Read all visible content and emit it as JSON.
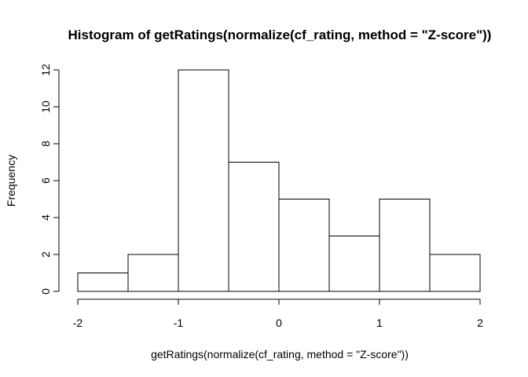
{
  "chart_data": {
    "type": "bar",
    "title": "Histogram of getRatings(normalize(cf_rating, method = \"Z-score\"))",
    "xlabel": "getRatings(normalize(cf_rating, method = \"Z-score\"))",
    "ylabel": "Frequency",
    "bins": [
      {
        "start": -2.0,
        "end": -1.5,
        "count": 1
      },
      {
        "start": -1.5,
        "end": -1.0,
        "count": 2
      },
      {
        "start": -1.0,
        "end": -0.5,
        "count": 12
      },
      {
        "start": -0.5,
        "end": 0.0,
        "count": 7
      },
      {
        "start": 0.0,
        "end": 0.5,
        "count": 5
      },
      {
        "start": 0.5,
        "end": 1.0,
        "count": 3
      },
      {
        "start": 1.0,
        "end": 1.5,
        "count": 5
      },
      {
        "start": 1.5,
        "end": 2.0,
        "count": 2
      }
    ],
    "xlim": [
      -2,
      2
    ],
    "ylim": [
      0,
      12
    ],
    "x_ticks": [
      -2,
      -1,
      0,
      1,
      2
    ],
    "x_tick_labels": [
      "-2",
      "-1",
      "0",
      "1",
      "2"
    ],
    "y_ticks": [
      0,
      2,
      4,
      6,
      8,
      10,
      12
    ],
    "y_tick_labels": [
      "0",
      "2",
      "4",
      "6",
      "8",
      "10",
      "12"
    ],
    "grid": false,
    "legend": "none",
    "colors": {
      "bar_fill": "#ffffff",
      "bar_stroke": "#000000"
    }
  }
}
